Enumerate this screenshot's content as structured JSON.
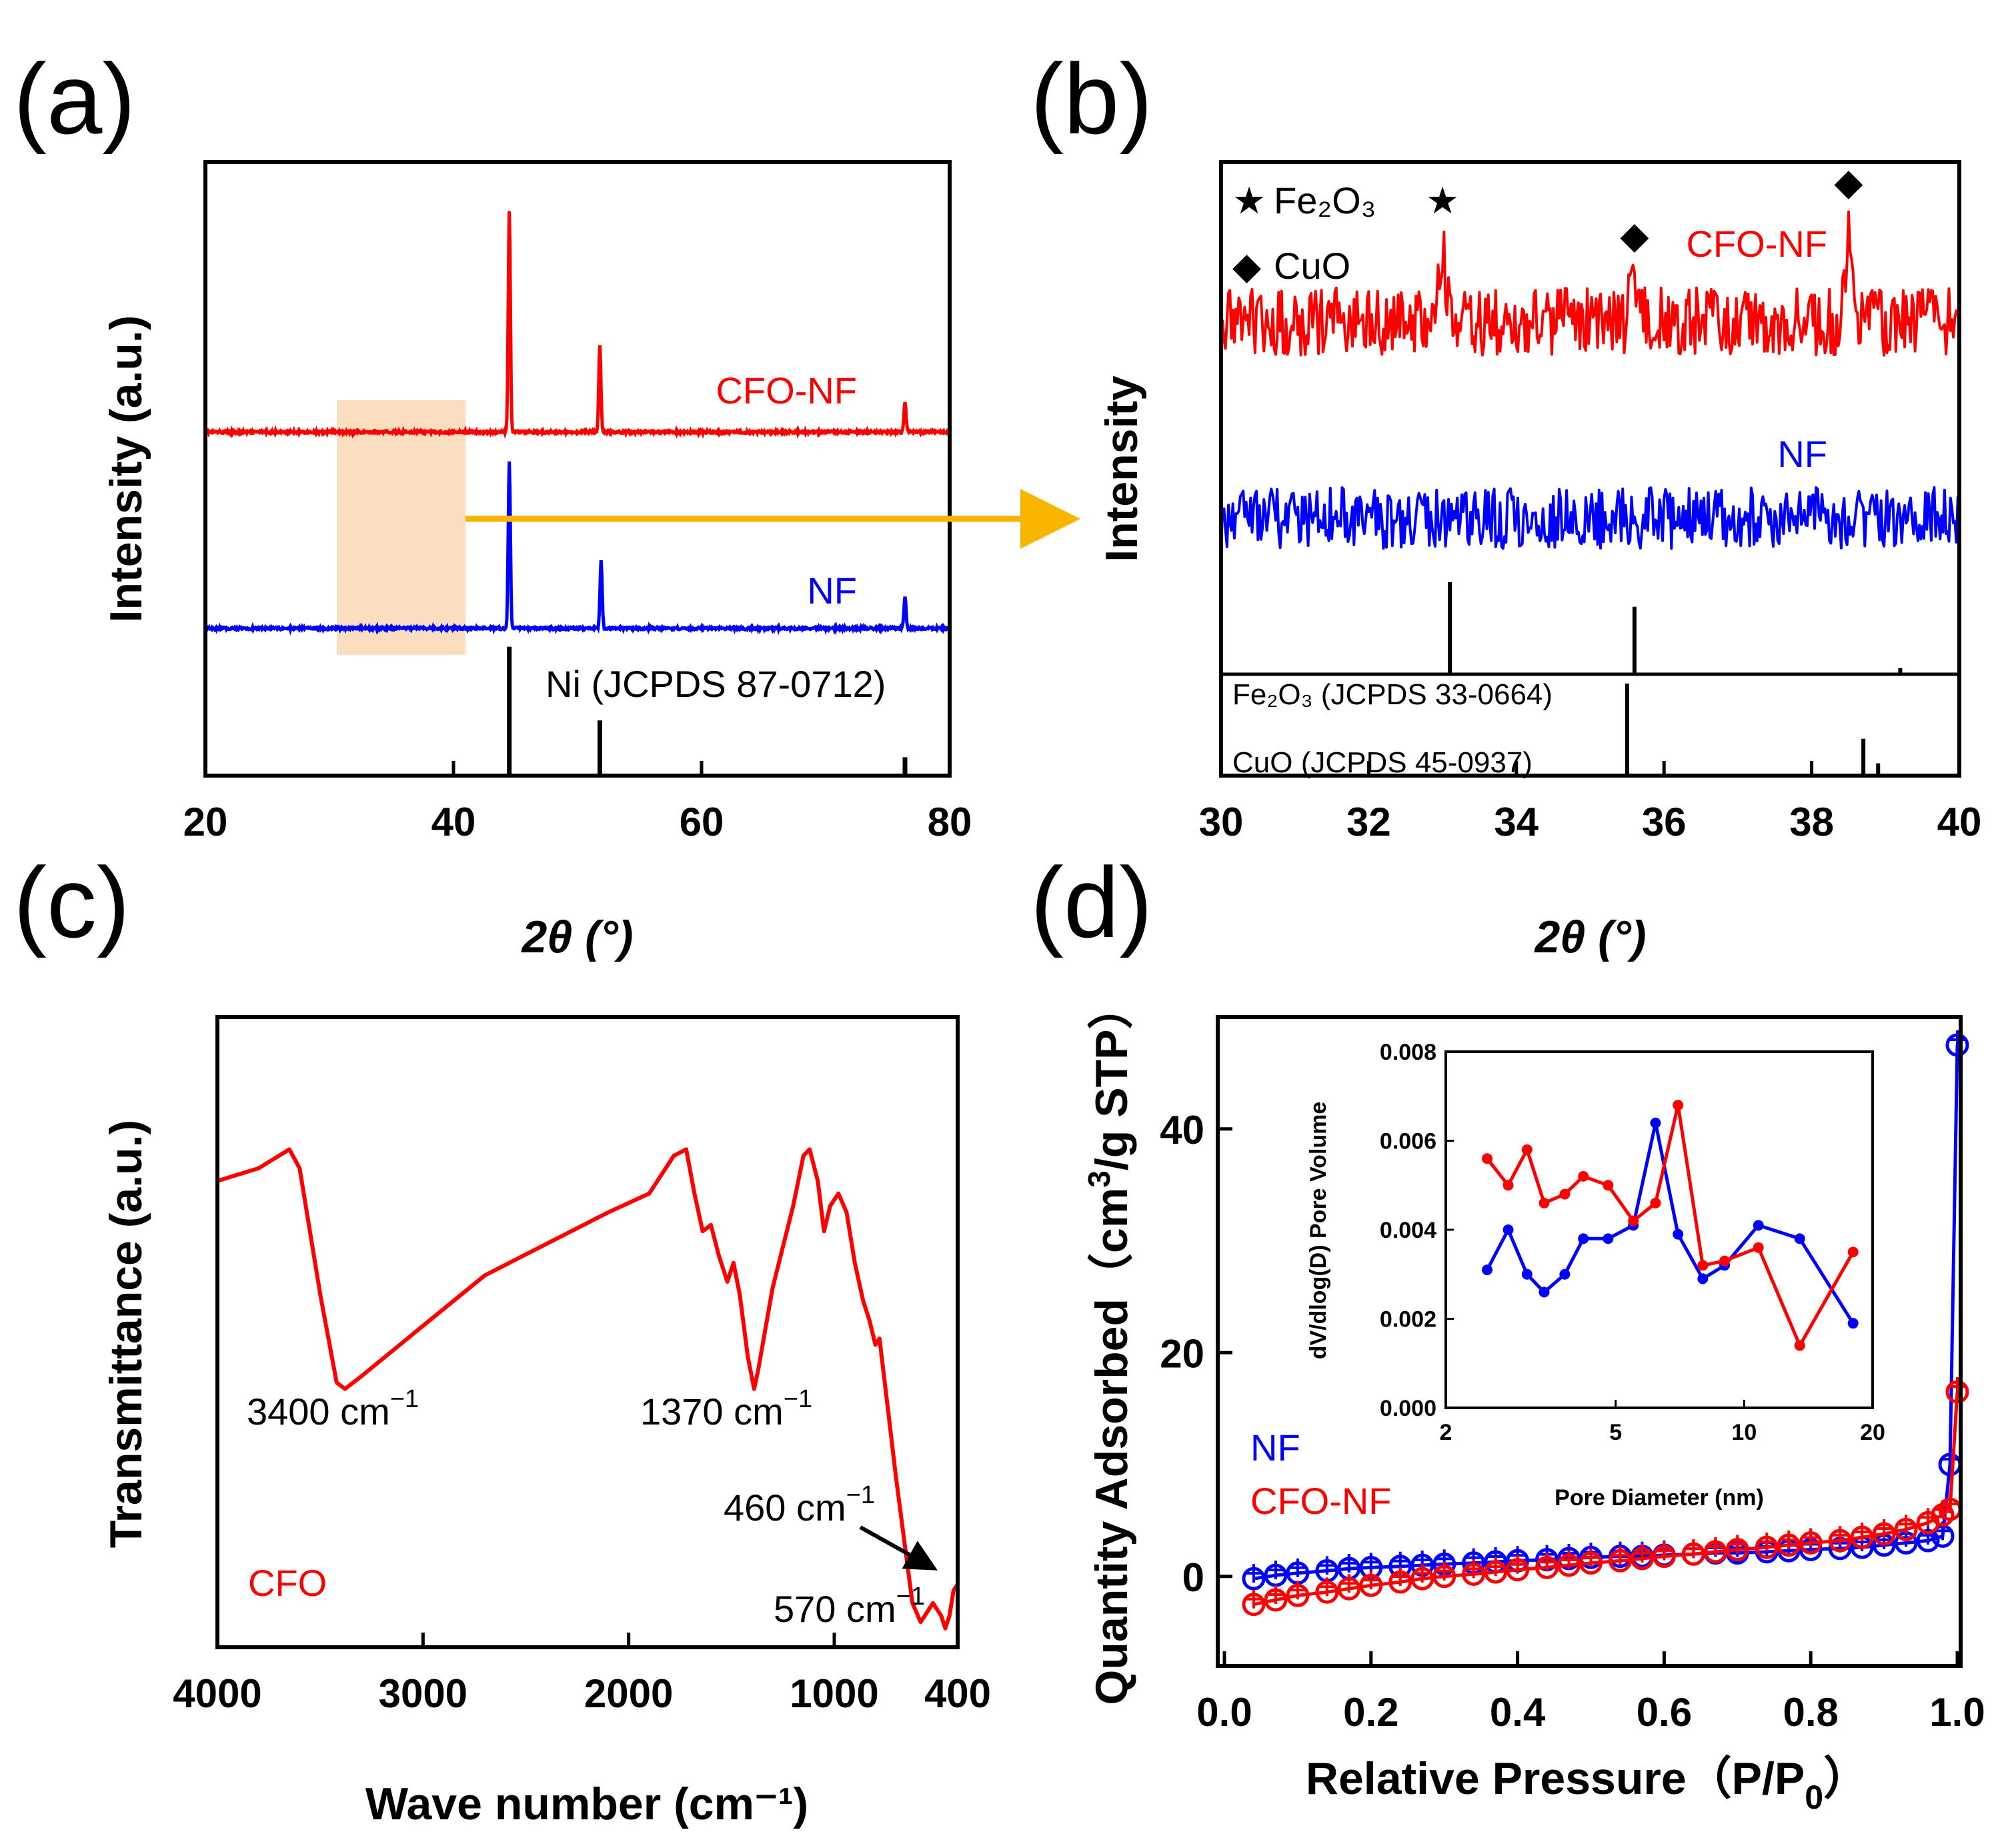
{
  "colors": {
    "red": "#ff0000",
    "blue": "#0000ff",
    "black": "#000000",
    "highlight": "#fad7b5",
    "arrow": "#f7b500"
  },
  "chart_data": [
    {
      "id": "a",
      "panel_label": "(a)",
      "type": "line",
      "title": "",
      "xlabel": "2θ (°)",
      "ylabel": "Intensity (a.u.)",
      "xlim": [
        20,
        80
      ],
      "xticks": [
        "20",
        "40",
        "60",
        "80"
      ],
      "series": [
        {
          "name": "CFO-NF",
          "color": "#ff0000",
          "baseline": 0.56,
          "peaks": [
            [
              44.5,
              0.36
            ],
            [
              51.8,
              0.14
            ],
            [
              76.4,
              0.05
            ]
          ]
        },
        {
          "name": "NF",
          "color": "#0000ff",
          "baseline": 0.24,
          "peaks": [
            [
              44.5,
              0.27
            ],
            [
              51.9,
              0.11
            ],
            [
              76.4,
              0.05
            ]
          ]
        }
      ],
      "reference": {
        "label": "Ni (JCPDS 87-0712)",
        "lines": [
          [
            44.5,
            0.21
          ],
          [
            51.8,
            0.09
          ],
          [
            76.4,
            0.03
          ]
        ]
      },
      "highlight_range": [
        30,
        40
      ]
    },
    {
      "id": "b",
      "panel_label": "(b)",
      "type": "line",
      "title": "",
      "xlabel": "2θ (°)",
      "ylabel": "Intensity",
      "xlim": [
        30,
        40
      ],
      "xticks": [
        "30",
        "32",
        "34",
        "36",
        "38",
        "40"
      ],
      "series": [
        {
          "name": "CFO-NF",
          "color": "#ff0000",
          "baseline": 0.74,
          "noise": 0.055,
          "peaks": [
            [
              33.0,
              0.1
            ],
            [
              35.6,
              0.08
            ],
            [
              38.5,
              0.14
            ]
          ]
        },
        {
          "name": "NF",
          "color": "#0000ff",
          "baseline": 0.42,
          "noise": 0.05,
          "peaks": []
        }
      ],
      "legend": [
        {
          "symbol": "★",
          "label": "Fe₂O₃"
        },
        {
          "symbol": "◆",
          "label": "CuO"
        }
      ],
      "reference": [
        {
          "label": "Fe₂O₃ (JCPDS 33-0664)",
          "lines": [
            [
              33.1,
              0.15
            ],
            [
              35.6,
              0.11
            ],
            [
              39.2,
              0.01
            ]
          ]
        },
        {
          "label": "CuO (JCPDS 45-0937)",
          "lines": [
            [
              35.5,
              0.15
            ],
            [
              38.7,
              0.06
            ],
            [
              38.9,
              0.02
            ]
          ]
        }
      ],
      "markers": [
        {
          "symbol": "★",
          "x": 33.0
        },
        {
          "symbol": "◆",
          "x": 35.6
        },
        {
          "symbol": "◆",
          "x": 38.5
        }
      ]
    },
    {
      "id": "c",
      "panel_label": "(c)",
      "type": "line",
      "title": "",
      "xlabel": "Wave number (cm⁻¹)",
      "ylabel": "Transmittance (a.u.)",
      "xlim": [
        4000,
        400
      ],
      "xticks": [
        "4000",
        "3000",
        "2000",
        "1000",
        "400"
      ],
      "series": [
        {
          "name": "CFO",
          "color": "#ff0000",
          "points": [
            [
              4000,
              0.74
            ],
            [
              3800,
              0.76
            ],
            [
              3650,
              0.79
            ],
            [
              3600,
              0.76
            ],
            [
              3500,
              0.56
            ],
            [
              3420,
              0.42
            ],
            [
              3380,
              0.41
            ],
            [
              3300,
              0.43
            ],
            [
              3000,
              0.51
            ],
            [
              2700,
              0.59
            ],
            [
              2400,
              0.64
            ],
            [
              2100,
              0.69
            ],
            [
              1900,
              0.72
            ],
            [
              1780,
              0.78
            ],
            [
              1720,
              0.79
            ],
            [
              1680,
              0.72
            ],
            [
              1640,
              0.66
            ],
            [
              1600,
              0.67
            ],
            [
              1560,
              0.62
            ],
            [
              1520,
              0.58
            ],
            [
              1490,
              0.61
            ],
            [
              1460,
              0.56
            ],
            [
              1420,
              0.46
            ],
            [
              1390,
              0.41
            ],
            [
              1370,
              0.44
            ],
            [
              1300,
              0.57
            ],
            [
              1200,
              0.7
            ],
            [
              1150,
              0.78
            ],
            [
              1120,
              0.79
            ],
            [
              1080,
              0.74
            ],
            [
              1050,
              0.66
            ],
            [
              1020,
              0.7
            ],
            [
              980,
              0.72
            ],
            [
              940,
              0.69
            ],
            [
              900,
              0.61
            ],
            [
              860,
              0.55
            ],
            [
              830,
              0.52
            ],
            [
              800,
              0.48
            ],
            [
              780,
              0.49
            ],
            [
              740,
              0.38
            ],
            [
              700,
              0.27
            ],
            [
              660,
              0.17
            ],
            [
              620,
              0.07
            ],
            [
              580,
              0.04
            ],
            [
              560,
              0.05
            ],
            [
              520,
              0.07
            ],
            [
              480,
              0.05
            ],
            [
              460,
              0.03
            ],
            [
              440,
              0.05
            ],
            [
              420,
              0.09
            ],
            [
              400,
              0.1
            ]
          ]
        }
      ],
      "annotations": [
        {
          "text": "3400 cm",
          "sup": "−1"
        },
        {
          "text": "1370 cm",
          "sup": "−1"
        },
        {
          "text": "460 cm",
          "sup": "−1"
        },
        {
          "text": "570 cm",
          "sup": "−1"
        }
      ]
    },
    {
      "id": "d",
      "panel_label": "(d)",
      "type": "scatter",
      "title": "",
      "xlabel": "Relative Pressure（P/P",
      "xlabel_sub": "0",
      "xlabel_end": "）",
      "ylabel": "Quantity Adsorbed（cm",
      "ylabel_sup": "3",
      "ylabel_end": "/g STP）",
      "xlim": [
        0.0,
        1.0
      ],
      "ylim": [
        -8,
        50
      ],
      "xticks": [
        "0.0",
        "0.2",
        "0.4",
        "0.6",
        "0.8",
        "1.0"
      ],
      "yticks": [
        "0",
        "20",
        "40"
      ],
      "series": [
        {
          "name": "NF",
          "color": "#0000ff",
          "x": [
            0.04,
            0.07,
            0.1,
            0.14,
            0.17,
            0.2,
            0.24,
            0.27,
            0.3,
            0.34,
            0.37,
            0.4,
            0.44,
            0.47,
            0.5,
            0.54,
            0.57,
            0.6,
            0.64,
            0.67,
            0.7,
            0.74,
            0.77,
            0.8,
            0.84,
            0.87,
            0.9,
            0.93,
            0.96,
            0.98,
            0.99,
            1.0
          ],
          "y": [
            -0.2,
            0.1,
            0.3,
            0.5,
            0.7,
            0.8,
            0.9,
            1.0,
            1.1,
            1.2,
            1.3,
            1.4,
            1.5,
            1.6,
            1.7,
            1.8,
            1.8,
            1.9,
            2.0,
            2.1,
            2.1,
            2.2,
            2.3,
            2.4,
            2.5,
            2.6,
            2.8,
            3.0,
            3.2,
            3.6,
            10.0,
            47.5
          ]
        },
        {
          "name": "CFO-NF",
          "color": "#ff0000",
          "x": [
            0.04,
            0.07,
            0.1,
            0.14,
            0.17,
            0.2,
            0.24,
            0.27,
            0.3,
            0.34,
            0.37,
            0.4,
            0.44,
            0.47,
            0.5,
            0.54,
            0.57,
            0.6,
            0.64,
            0.67,
            0.7,
            0.74,
            0.77,
            0.8,
            0.84,
            0.87,
            0.9,
            0.93,
            0.96,
            0.98,
            0.99,
            1.0
          ],
          "y": [
            -2.5,
            -2.1,
            -1.7,
            -1.4,
            -1.1,
            -0.8,
            -0.5,
            -0.2,
            0.0,
            0.2,
            0.4,
            0.6,
            0.8,
            1.0,
            1.2,
            1.4,
            1.6,
            1.8,
            2.0,
            2.2,
            2.4,
            2.6,
            2.8,
            3.0,
            3.2,
            3.5,
            3.8,
            4.2,
            4.8,
            5.5,
            6.0,
            16.5
          ]
        }
      ],
      "inset": {
        "xlabel": "Pore Diameter (nm)",
        "ylabel": "dV/dlog(D) Pore Volume",
        "xscale": "log",
        "xlim": [
          2,
          20
        ],
        "ylim": [
          0,
          0.008
        ],
        "xticks": [
          "2",
          "5",
          "10",
          "20"
        ],
        "yticks": [
          "0.000",
          "0.002",
          "0.004",
          "0.006",
          "0.008"
        ],
        "series": [
          {
            "name": "NF",
            "color": "#0000ff",
            "x": [
              2.5,
              2.8,
              3.1,
              3.4,
              3.8,
              4.2,
              4.8,
              5.5,
              6.2,
              7.0,
              8.0,
              9.0,
              10.8,
              13.5,
              18.0
            ],
            "y": [
              0.0031,
              0.004,
              0.003,
              0.0026,
              0.003,
              0.0038,
              0.0038,
              0.0041,
              0.0064,
              0.0039,
              0.0029,
              0.0032,
              0.0041,
              0.0038,
              0.0019
            ]
          },
          {
            "name": "CFO-NF",
            "color": "#ff0000",
            "x": [
              2.5,
              2.8,
              3.1,
              3.4,
              3.8,
              4.2,
              4.8,
              5.5,
              6.2,
              7.0,
              8.0,
              9.0,
              10.8,
              13.5,
              18.0
            ],
            "y": [
              0.0056,
              0.005,
              0.0058,
              0.0046,
              0.0048,
              0.0052,
              0.005,
              0.0042,
              0.0046,
              0.0068,
              0.0032,
              0.0033,
              0.0036,
              0.0014,
              0.0035
            ]
          }
        ]
      }
    }
  ]
}
